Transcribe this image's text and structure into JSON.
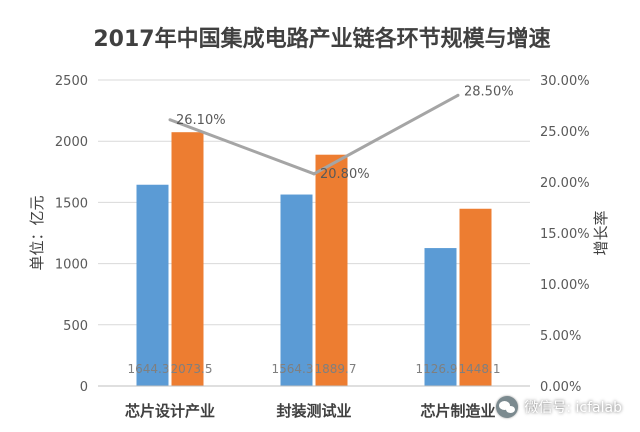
{
  "chart_data": {
    "type": "bar",
    "title": "2017年中国集成电路产业链各环节规模与增速",
    "ylabel": "单位：亿元",
    "y2label": "增长率",
    "ylim": [
      0,
      2500
    ],
    "y2lim": [
      0,
      0.3
    ],
    "yticks": [
      "0",
      "500",
      "1000",
      "1500",
      "2000",
      "2500"
    ],
    "y2ticks": [
      "0.00%",
      "5.00%",
      "10.00%",
      "15.00%",
      "20.00%",
      "25.00%",
      "30.00%"
    ],
    "categories": [
      "芯片设计产业",
      "封装测试业",
      "芯片制造业"
    ],
    "series": [
      {
        "values": [
          1644.3,
          1564.3,
          1126.9
        ],
        "labels": [
          "1644.3",
          "1564.3",
          "1126.9"
        ],
        "color": "#5b9bd5",
        "kind": "bar"
      },
      {
        "values": [
          2073.5,
          1889.7,
          1448.1
        ],
        "labels": [
          "2073.5",
          "1889.7",
          "1448.1"
        ],
        "color": "#ed7d31",
        "kind": "bar"
      },
      {
        "values": [
          0.261,
          0.208,
          0.285
        ],
        "labels": [
          "26.10%",
          "20.80%",
          "28.50%"
        ],
        "color": "#a5a5a5",
        "kind": "line",
        "axis": "secondary"
      }
    ],
    "grid": true,
    "legend": "none"
  },
  "watermark": {
    "text": "微信号: icfalab",
    "icon": "wechat-icon"
  }
}
